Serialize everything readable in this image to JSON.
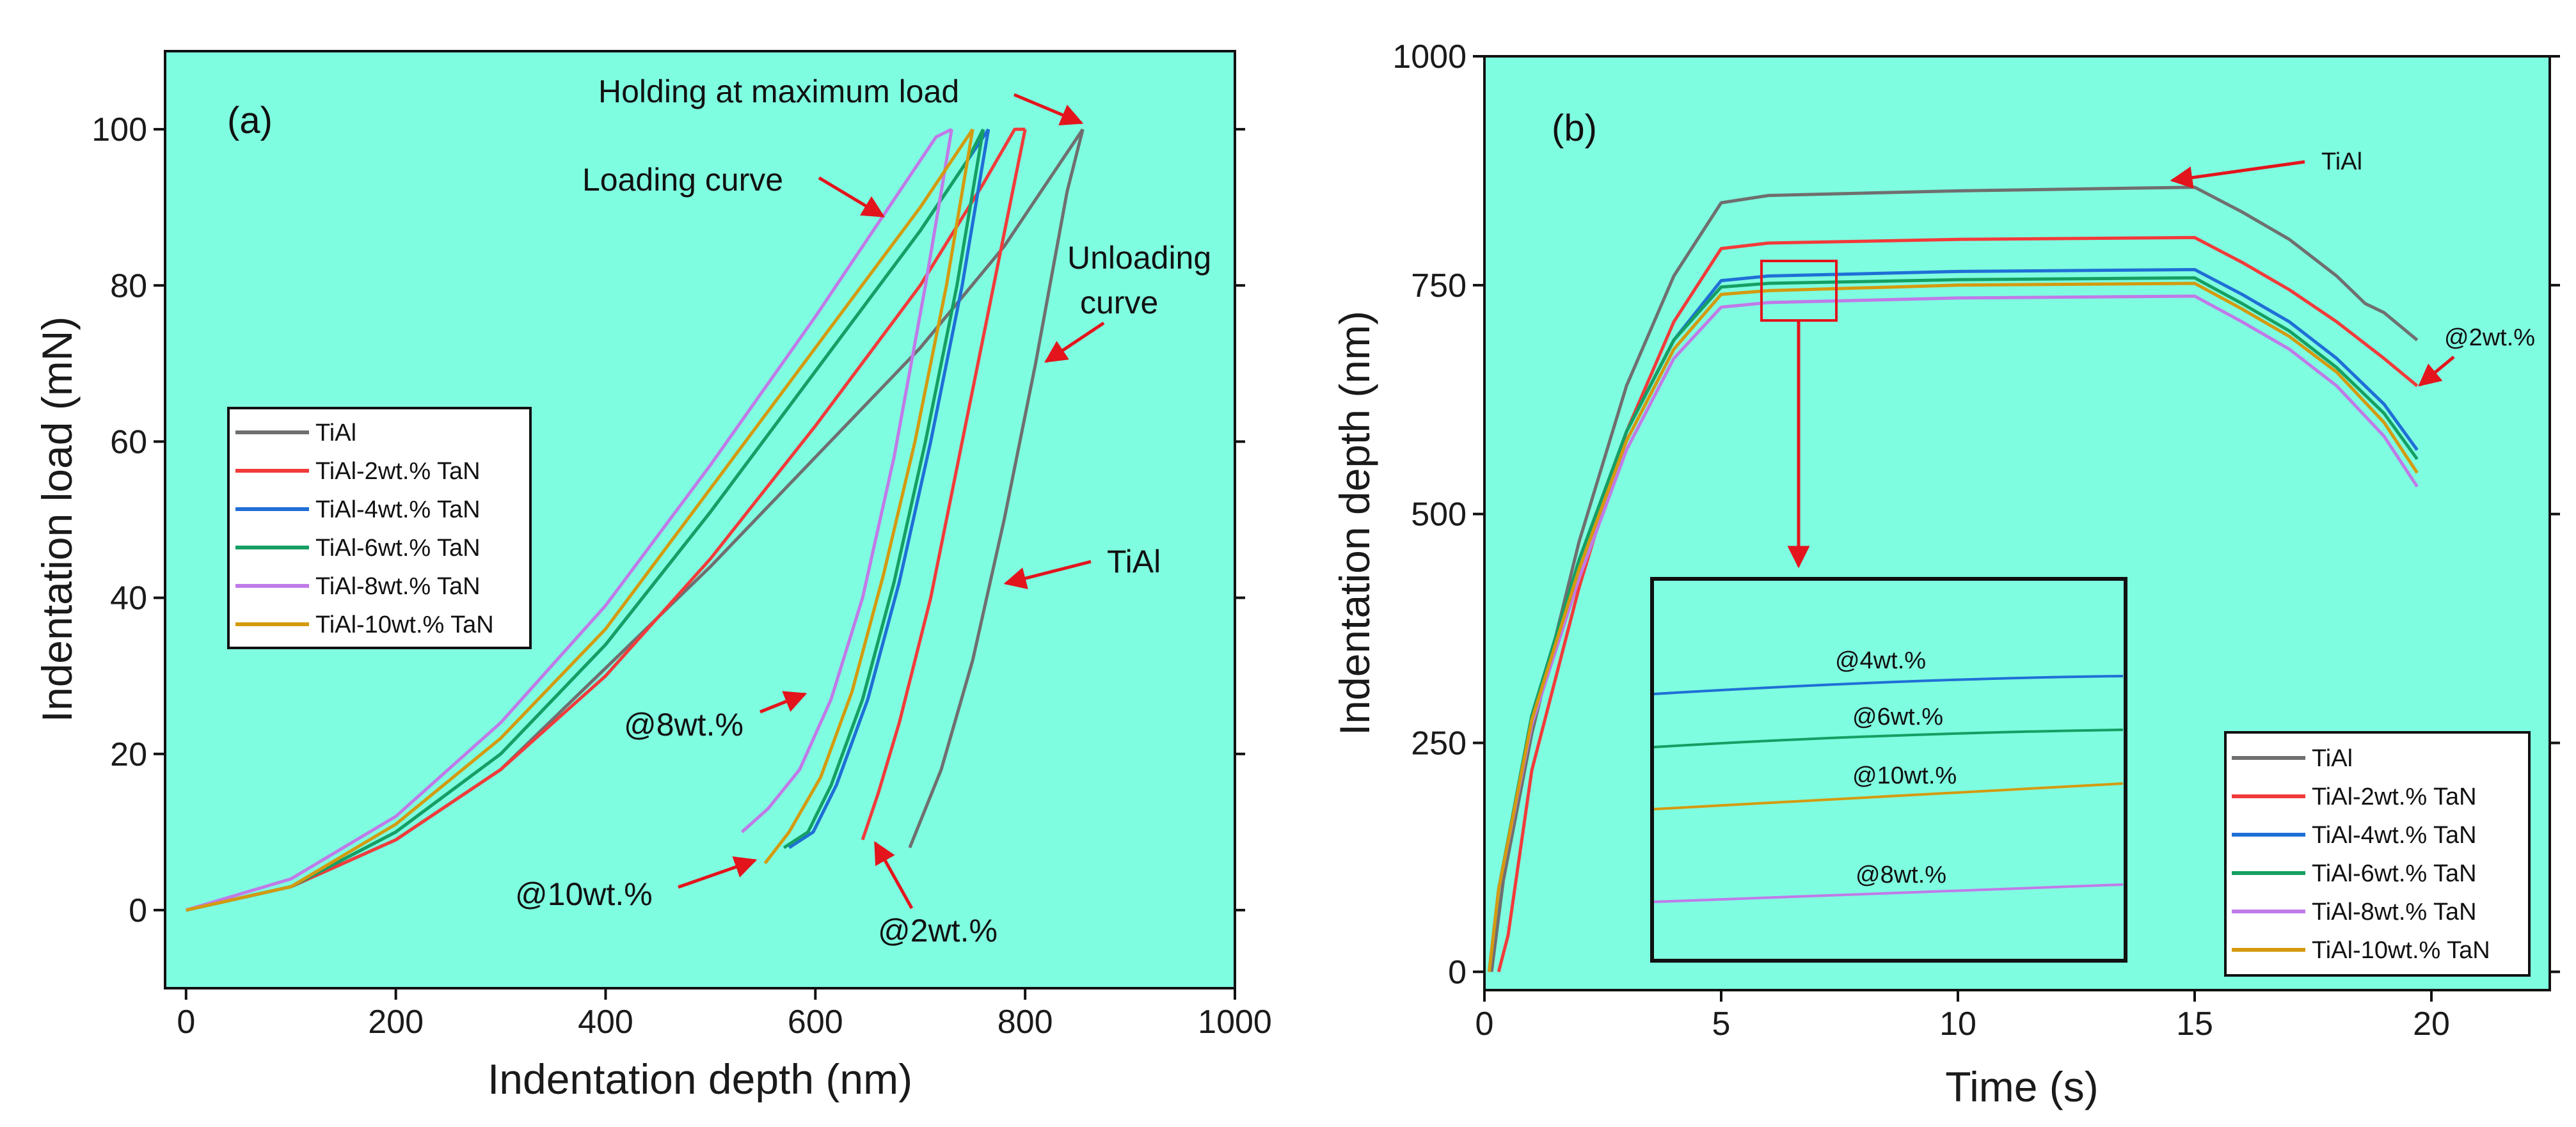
{
  "colors": {
    "background": "#7ffde0",
    "TiAl": "#6f6f6f",
    "TiAl-2wt.% TaN": "#f23a3a",
    "TiAl-4wt.% TaN": "#1f6fd6",
    "TiAl-6wt.% TaN": "#159f63",
    "TiAl-8wt.% TaN": "#c07ae8",
    "TiAl-10wt.% TaN": "#d49a0f",
    "arrow": "#e3141c"
  },
  "chart_data": [
    {
      "type": "line",
      "panel_label": "(a)",
      "title": "",
      "xlabel": "Indentation depth (nm)",
      "ylabel": "Indentation load (mN)",
      "xlim": [
        -20,
        1000
      ],
      "ylim": [
        -10,
        110
      ],
      "xticks": [
        0,
        200,
        400,
        600,
        800,
        1000
      ],
      "yticks": [
        0,
        20,
        40,
        60,
        80,
        100
      ],
      "legend": {
        "position": "middle-left",
        "entries": [
          "TiAl",
          "TiAl-2wt.% TaN",
          "TiAl-4wt.% TaN",
          "TiAl-6wt.% TaN",
          "TiAl-8wt.% TaN",
          "TiAl-10wt.% TaN"
        ]
      },
      "series": [
        {
          "name": "TiAl",
          "loading": [
            [
              0,
              0
            ],
            [
              100,
              3
            ],
            [
              200,
              9
            ],
            [
              300,
              18
            ],
            [
              400,
              31
            ],
            [
              500,
              44
            ],
            [
              600,
              58
            ],
            [
              700,
              72
            ],
            [
              780,
              85
            ],
            [
              830,
              95
            ],
            [
              855,
              100
            ]
          ],
          "unloading": [
            [
              855,
              100
            ],
            [
              840,
              92
            ],
            [
              810,
              70
            ],
            [
              780,
              50
            ],
            [
              750,
              32
            ],
            [
              720,
              18
            ],
            [
              690,
              8
            ]
          ]
        },
        {
          "name": "TiAl-2wt.% TaN",
          "loading": [
            [
              0,
              0
            ],
            [
              100,
              3
            ],
            [
              200,
              9
            ],
            [
              300,
              18
            ],
            [
              400,
              30
            ],
            [
              500,
              45
            ],
            [
              600,
              62
            ],
            [
              700,
              80
            ],
            [
              760,
              93
            ],
            [
              790,
              100
            ],
            [
              800,
              100
            ]
          ],
          "unloading": [
            [
              800,
              100
            ],
            [
              770,
              80
            ],
            [
              740,
              60
            ],
            [
              710,
              40
            ],
            [
              680,
              24
            ],
            [
              660,
              15
            ],
            [
              645,
              9
            ]
          ]
        },
        {
          "name": "TiAl-4wt.% TaN",
          "loading": [
            [
              0,
              0
            ],
            [
              100,
              3
            ],
            [
              200,
              10
            ],
            [
              300,
              20
            ],
            [
              400,
              34
            ],
            [
              500,
              51
            ],
            [
              600,
              69
            ],
            [
              700,
              87
            ],
            [
              750,
              97
            ],
            [
              765,
              100
            ]
          ],
          "unloading": [
            [
              765,
              100
            ],
            [
              740,
              80
            ],
            [
              710,
              60
            ],
            [
              680,
              42
            ],
            [
              650,
              27
            ],
            [
              620,
              16
            ],
            [
              598,
              10
            ],
            [
              575,
              8
            ]
          ]
        },
        {
          "name": "TiAl-6wt.% TaN",
          "loading": [
            [
              0,
              0
            ],
            [
              100,
              3
            ],
            [
              200,
              10
            ],
            [
              300,
              20
            ],
            [
              400,
              34
            ],
            [
              500,
              51
            ],
            [
              600,
              69
            ],
            [
              700,
              87
            ],
            [
              745,
              96
            ],
            [
              760,
              100
            ]
          ],
          "unloading": [
            [
              760,
              100
            ],
            [
              735,
              80
            ],
            [
              705,
              60
            ],
            [
              675,
              42
            ],
            [
              645,
              27
            ],
            [
              615,
              16
            ],
            [
              593,
              10
            ],
            [
              570,
              8
            ]
          ]
        },
        {
          "name": "TiAl-8wt.% TaN",
          "loading": [
            [
              0,
              0
            ],
            [
              100,
              4
            ],
            [
              200,
              12
            ],
            [
              300,
              24
            ],
            [
              400,
              39
            ],
            [
              500,
              57
            ],
            [
              600,
              76
            ],
            [
              680,
              92
            ],
            [
              715,
              99
            ],
            [
              730,
              100
            ]
          ],
          "unloading": [
            [
              730,
              100
            ],
            [
              705,
              80
            ],
            [
              675,
              58
            ],
            [
              645,
              40
            ],
            [
              615,
              27
            ],
            [
              585,
              18
            ],
            [
              555,
              13
            ],
            [
              530,
              10
            ]
          ]
        },
        {
          "name": "TiAl-10wt.% TaN",
          "loading": [
            [
              0,
              0
            ],
            [
              100,
              3
            ],
            [
              200,
              11
            ],
            [
              300,
              22
            ],
            [
              400,
              36
            ],
            [
              500,
              54
            ],
            [
              600,
              72
            ],
            [
              700,
              90
            ],
            [
              740,
              98
            ],
            [
              750,
              100
            ]
          ],
          "unloading": [
            [
              750,
              100
            ],
            [
              725,
              80
            ],
            [
              695,
              60
            ],
            [
              665,
              43
            ],
            [
              635,
              28
            ],
            [
              605,
              17
            ],
            [
              575,
              10
            ],
            [
              552,
              6
            ]
          ]
        }
      ],
      "annotations": [
        "Holding at maximum load",
        "Loading curve",
        "Unloading",
        "curve",
        "TiAl",
        "@8wt.%",
        "@10wt.%",
        "@2wt.%"
      ]
    },
    {
      "type": "line",
      "panel_label": "(b)",
      "title": "",
      "xlabel": "Time (s)",
      "ylabel": "Indentation depth (nm)",
      "xlim": [
        0,
        22.5
      ],
      "ylim": [
        -20,
        1000
      ],
      "xticks": [
        0,
        5,
        10,
        15,
        20
      ],
      "yticks": [
        0,
        250,
        500,
        750,
        1000
      ],
      "legend": {
        "position": "bottom-right",
        "entries": [
          "TiAl",
          "TiAl-2wt.% TaN",
          "TiAl-4wt.% TaN",
          "TiAl-6wt.% TaN",
          "TiAl-8wt.% TaN",
          "TiAl-10wt.% TaN"
        ]
      },
      "series": [
        {
          "name": "TiAl",
          "points": [
            [
              0.15,
              0
            ],
            [
              0.4,
              100
            ],
            [
              1,
              260
            ],
            [
              2,
              470
            ],
            [
              3,
              640
            ],
            [
              4,
              760
            ],
            [
              5,
              840
            ],
            [
              6,
              848
            ],
            [
              10,
              853
            ],
            [
              15,
              857
            ],
            [
              16,
              830
            ],
            [
              17,
              800
            ],
            [
              18,
              760
            ],
            [
              18.6,
              730
            ],
            [
              19,
              720
            ],
            [
              19.7,
              690
            ]
          ]
        },
        {
          "name": "TiAl-2wt.% TaN",
          "points": [
            [
              0.3,
              0
            ],
            [
              0.5,
              40
            ],
            [
              1,
              220
            ],
            [
              2,
              420
            ],
            [
              3,
              590
            ],
            [
              4,
              710
            ],
            [
              5,
              790
            ],
            [
              6,
              796
            ],
            [
              10,
              800
            ],
            [
              15,
              802
            ],
            [
              16,
              775
            ],
            [
              17,
              745
            ],
            [
              18,
              710
            ],
            [
              19,
              670
            ],
            [
              19.7,
              640
            ]
          ]
        },
        {
          "name": "TiAl-4wt.% TaN",
          "points": [
            [
              0.1,
              0
            ],
            [
              0.3,
              90
            ],
            [
              1,
              280
            ],
            [
              2,
              450
            ],
            [
              3,
              590
            ],
            [
              4,
              690
            ],
            [
              5,
              755
            ],
            [
              6,
              760
            ],
            [
              10,
              765
            ],
            [
              15,
              767
            ],
            [
              16,
              740
            ],
            [
              17,
              710
            ],
            [
              18,
              670
            ],
            [
              19,
              620
            ],
            [
              19.7,
              570
            ]
          ]
        },
        {
          "name": "TiAl-6wt.% TaN",
          "points": [
            [
              0.1,
              0
            ],
            [
              0.3,
              90
            ],
            [
              1,
              280
            ],
            [
              2,
              450
            ],
            [
              3,
              590
            ],
            [
              4,
              690
            ],
            [
              5,
              748
            ],
            [
              6,
              752
            ],
            [
              10,
              756
            ],
            [
              15,
              758
            ],
            [
              16,
              730
            ],
            [
              17,
              700
            ],
            [
              18,
              660
            ],
            [
              19,
              610
            ],
            [
              19.7,
              560
            ]
          ]
        },
        {
          "name": "TiAl-8wt.% TaN",
          "points": [
            [
              0.1,
              0
            ],
            [
              0.3,
              90
            ],
            [
              1,
              270
            ],
            [
              2,
              430
            ],
            [
              3,
              570
            ],
            [
              4,
              670
            ],
            [
              5,
              726
            ],
            [
              6,
              731
            ],
            [
              10,
              736
            ],
            [
              15,
              738
            ],
            [
              16,
              710
            ],
            [
              17,
              680
            ],
            [
              18,
              640
            ],
            [
              19,
              585
            ],
            [
              19.7,
              530
            ]
          ]
        },
        {
          "name": "TiAl-10wt.% TaN",
          "points": [
            [
              0.1,
              0
            ],
            [
              0.3,
              90
            ],
            [
              1,
              275
            ],
            [
              2,
              440
            ],
            [
              3,
              580
            ],
            [
              4,
              680
            ],
            [
              5,
              740
            ],
            [
              6,
              744
            ],
            [
              10,
              750
            ],
            [
              15,
              752
            ],
            [
              16,
              724
            ],
            [
              17,
              694
            ],
            [
              18,
              655
            ],
            [
              19,
              600
            ],
            [
              19.7,
              545
            ]
          ]
        }
      ],
      "annotations": [
        "TiAl",
        "@2wt.%"
      ],
      "inset": {
        "labels": [
          "@4wt.%",
          "@6wt.%",
          "@10wt.%",
          "@8wt.%"
        ],
        "series": [
          "TiAl-4wt.% TaN",
          "TiAl-6wt.% TaN",
          "TiAl-10wt.% TaN",
          "TiAl-8wt.% TaN"
        ]
      }
    }
  ]
}
